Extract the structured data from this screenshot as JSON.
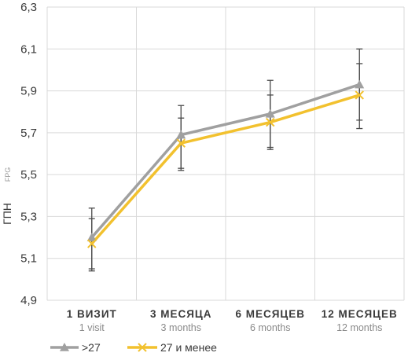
{
  "chart_data": {
    "type": "line",
    "ylabel": "ГПН",
    "ylabel_sub": "FPG",
    "ylim": [
      4.9,
      6.3
    ],
    "yticks": [
      "4,9",
      "5,1",
      "5,3",
      "5,5",
      "5,7",
      "5,9",
      "6,1",
      "6,3"
    ],
    "ytick_values": [
      4.9,
      5.1,
      5.3,
      5.5,
      5.7,
      5.9,
      6.1,
      6.3
    ],
    "categories": [
      "1 ВИЗИТ",
      "3 МЕСЯЦА",
      "6 МЕСЯЦЕВ",
      "12 МЕСЯЦЕВ"
    ],
    "categories_sub": [
      "1 visit",
      "3 months",
      "6 months",
      "12 months"
    ],
    "grid": true,
    "legend_position": "bottom-left",
    "series": [
      {
        "name": ">27",
        "color": "#a0a0a0",
        "marker": "triangle",
        "values": [
          5.2,
          5.69,
          5.79,
          5.93
        ],
        "err_low": [
          5.05,
          5.53,
          5.63,
          5.76
        ],
        "err_high": [
          5.34,
          5.83,
          5.95,
          6.1
        ]
      },
      {
        "name": "27 и менее",
        "color": "#f2c12e",
        "marker": "x",
        "values": [
          5.17,
          5.65,
          5.75,
          5.88
        ],
        "err_low": [
          5.04,
          5.52,
          5.62,
          5.72
        ],
        "err_high": [
          5.29,
          5.77,
          5.88,
          6.03
        ]
      }
    ]
  }
}
